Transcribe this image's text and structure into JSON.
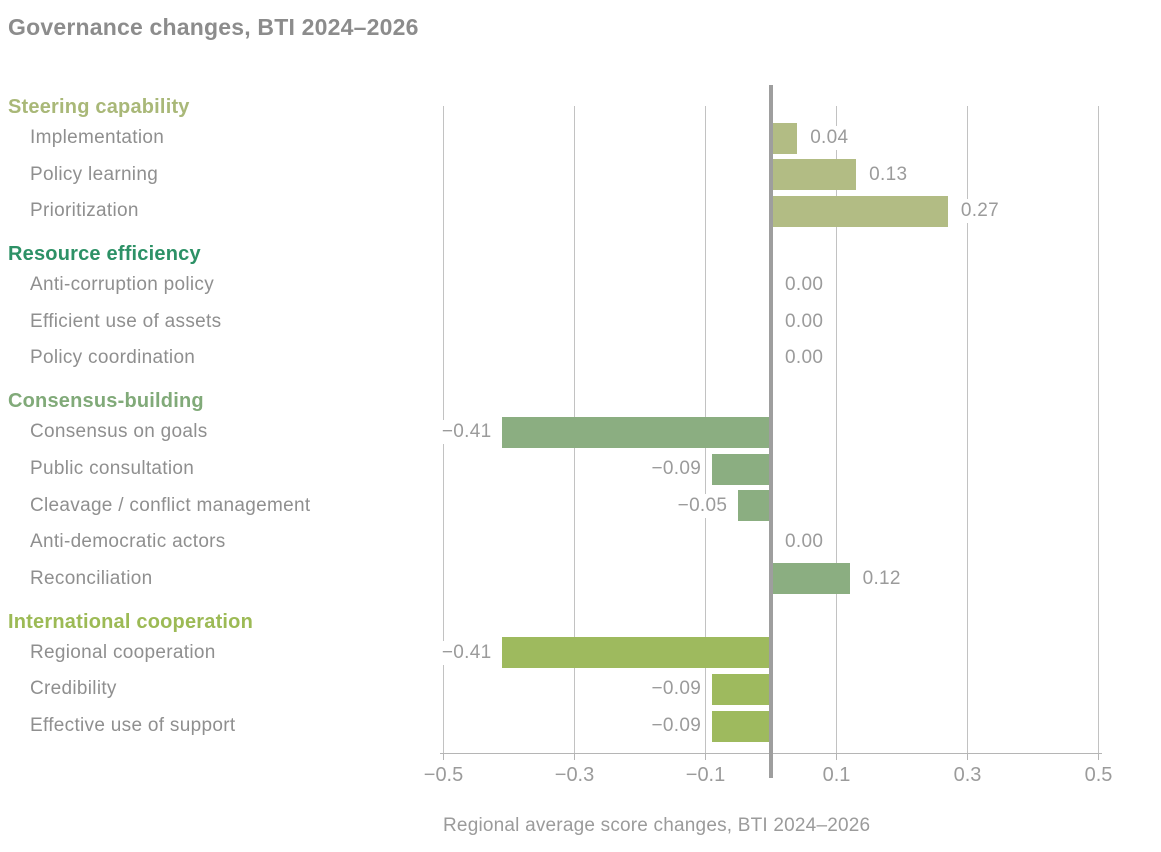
{
  "chart_data": {
    "type": "bar",
    "orientation": "horizontal",
    "title": "Governance changes, BTI 2024–2026",
    "xlabel": "Regional average score changes, BTI 2024–2026",
    "xlim": [
      -0.5,
      0.5
    ],
    "grid": true,
    "xticks": [
      {
        "value": -0.5,
        "label": "−0.5"
      },
      {
        "value": -0.3,
        "label": "−0.3"
      },
      {
        "value": -0.1,
        "label": "−0.1"
      },
      {
        "value": 0.1,
        "label": "0.1"
      },
      {
        "value": 0.3,
        "label": "0.3"
      },
      {
        "value": 0.5,
        "label": "0.5"
      }
    ],
    "groups": [
      {
        "name": "Steering capability",
        "header_color": "#a9b878",
        "bar_color": "#b2bc84",
        "items": [
          {
            "label": "Implementation",
            "value": 0.04,
            "value_label": "0.04"
          },
          {
            "label": "Policy learning",
            "value": 0.13,
            "value_label": "0.13"
          },
          {
            "label": "Prioritization",
            "value": 0.27,
            "value_label": "0.27"
          }
        ]
      },
      {
        "name": "Resource efficiency",
        "header_color": "#2d9166",
        "bar_color": "#2d9166",
        "items": [
          {
            "label": "Anti-corruption policy",
            "value": 0,
            "value_label": "0.00"
          },
          {
            "label": "Efficient use of assets",
            "value": 0,
            "value_label": "0.00"
          },
          {
            "label": "Policy coordination",
            "value": 0,
            "value_label": "0.00"
          }
        ]
      },
      {
        "name": "Consensus-building",
        "header_color": "#81aa79",
        "bar_color": "#8bae81",
        "items": [
          {
            "label": "Consensus on goals",
            "value": -0.41,
            "value_label": "−0.41"
          },
          {
            "label": "Public consultation",
            "value": -0.09,
            "value_label": "−0.09"
          },
          {
            "label": "Cleavage / conflict management",
            "value": -0.05,
            "value_label": "−0.05"
          },
          {
            "label": "Anti-democratic actors",
            "value": 0,
            "value_label": "0.00"
          },
          {
            "label": "Reconciliation",
            "value": 0.12,
            "value_label": "0.12"
          }
        ]
      },
      {
        "name": "International cooperation",
        "header_color": "#9cba55",
        "bar_color": "#9eba5e",
        "items": [
          {
            "label": "Regional cooperation",
            "value": -0.41,
            "value_label": "−0.41"
          },
          {
            "label": "Credibility",
            "value": -0.09,
            "value_label": "−0.09"
          },
          {
            "label": "Effective use of support",
            "value": -0.09,
            "value_label": "−0.09"
          }
        ]
      }
    ],
    "colors": {
      "title_text": "#8c8c8c",
      "item_text": "#8f8f8f",
      "value_text": "#9b9b9b",
      "tick_text": "#9b9b9b",
      "axis_title_text": "#9b9b9b",
      "gridline": "#c2c2c2",
      "zero_line": "#9e9e9e",
      "axis_line": "#b5b5b5"
    }
  }
}
